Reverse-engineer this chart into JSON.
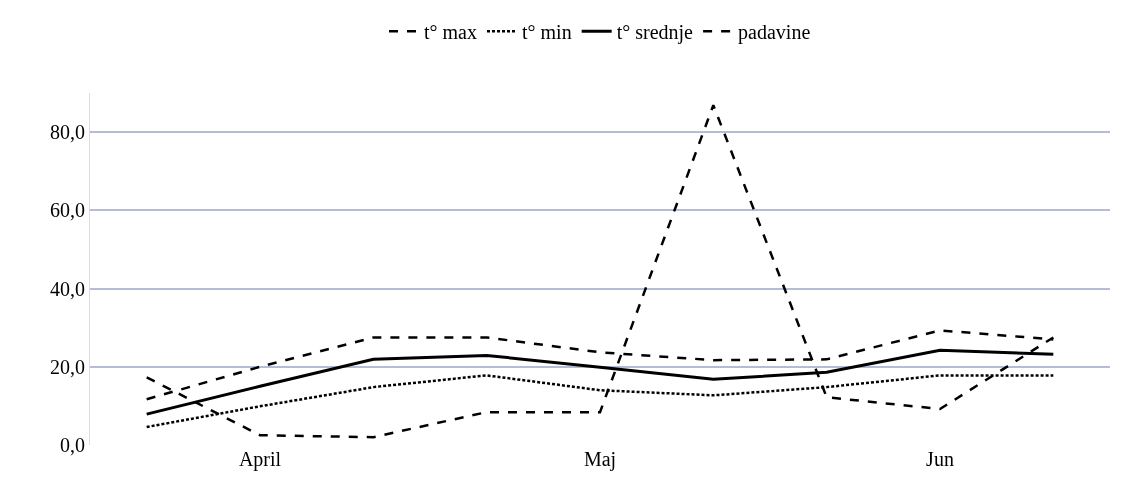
{
  "chart_data": {
    "type": "line",
    "categories": [
      null,
      "April",
      null,
      null,
      "Maj",
      null,
      null,
      "Jun",
      null
    ],
    "series": [
      {
        "name": "t° max",
        "color": "#000000",
        "line_style": "dashed",
        "values": [
          11.7,
          20.0,
          27.5,
          27.5,
          23.7,
          21.7,
          21.9,
          29.3,
          27.0
        ]
      },
      {
        "name": "t° min",
        "color": "#000000",
        "line_style": "dotted",
        "values": [
          4.6,
          9.9,
          14.8,
          17.8,
          14.0,
          12.7,
          14.8,
          17.8,
          17.8
        ]
      },
      {
        "name": "t° srednje",
        "color": "#000000",
        "line_style": "solid",
        "values": [
          7.9,
          15.0,
          21.9,
          22.9,
          19.9,
          16.8,
          18.6,
          24.2,
          23.2
        ]
      },
      {
        "name": "padavine",
        "color": "#000000",
        "line_style": "dashed",
        "values": [
          17.3,
          2.5,
          2.0,
          8.4,
          8.4,
          86.9,
          12.2,
          9.2,
          27.5
        ]
      }
    ],
    "ylim": [
      0,
      90
    ],
    "yticks": [
      {
        "value": 0,
        "label": "0,0"
      },
      {
        "value": 20,
        "label": "20,0"
      },
      {
        "value": 40,
        "label": "40,0"
      },
      {
        "value": 60,
        "label": "60,0"
      },
      {
        "value": 80,
        "label": "80,0"
      }
    ],
    "grid": "y",
    "legend": "top",
    "marker": "none"
  }
}
